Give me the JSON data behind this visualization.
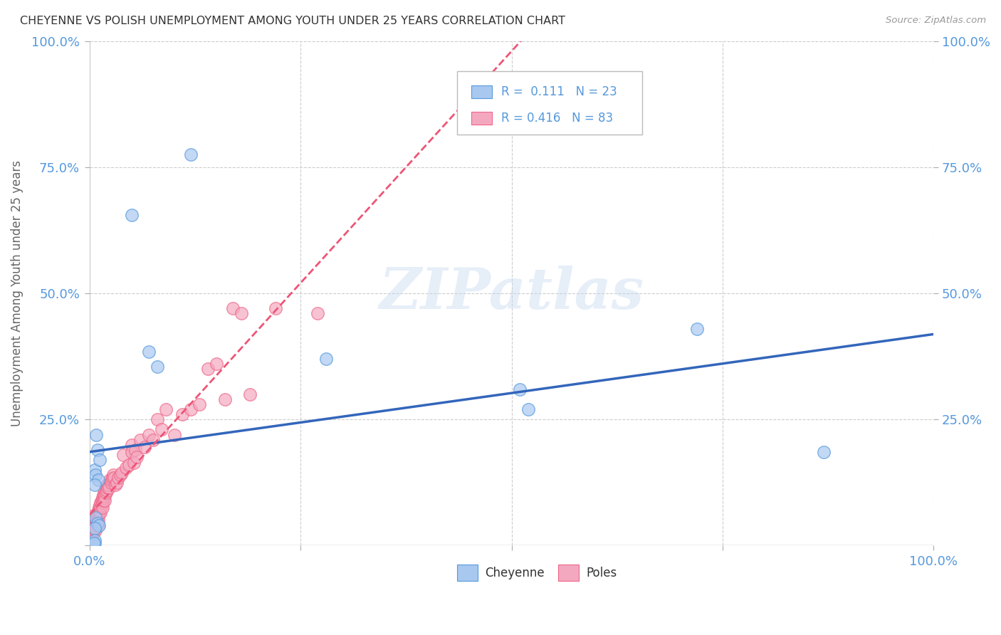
{
  "title": "CHEYENNE VS POLISH UNEMPLOYMENT AMONG YOUTH UNDER 25 YEARS CORRELATION CHART",
  "source": "Source: ZipAtlas.com",
  "ylabel": "Unemployment Among Youth under 25 years",
  "xlim": [
    0,
    1
  ],
  "ylim": [
    0,
    1
  ],
  "cheyenne_R": 0.111,
  "cheyenne_N": 23,
  "poles_R": 0.416,
  "poles_N": 83,
  "cheyenne_color": "#a8c8f0",
  "poles_color": "#f4a8c0",
  "cheyenne_edge_color": "#5599dd",
  "poles_edge_color": "#ee6688",
  "cheyenne_line_color": "#3366bb",
  "poles_line_color": "#ee5577",
  "background_color": "#ffffff",
  "grid_color": "#cccccc",
  "title_color": "#333333",
  "axis_tick_color": "#5599dd",
  "cheyenne_x": [
    0.008,
    0.009,
    0.006,
    0.012,
    0.007,
    0.01,
    0.006,
    0.007,
    0.009,
    0.011,
    0.006,
    0.006,
    0.006,
    0.28,
    0.51,
    0.52,
    0.72,
    0.87,
    0.05,
    0.07,
    0.08,
    0.12,
    0.005
  ],
  "cheyenne_y": [
    0.22,
    0.19,
    0.15,
    0.17,
    0.14,
    0.13,
    0.12,
    0.055,
    0.045,
    0.04,
    0.035,
    0.005,
    0.01,
    0.37,
    0.31,
    0.27,
    0.43,
    0.185,
    0.655,
    0.385,
    0.355,
    0.775,
    0.005
  ],
  "poles_x": [
    0.003,
    0.004,
    0.004,
    0.005,
    0.005,
    0.005,
    0.006,
    0.007,
    0.007,
    0.007,
    0.008,
    0.008,
    0.009,
    0.009,
    0.009,
    0.01,
    0.01,
    0.01,
    0.01,
    0.011,
    0.011,
    0.012,
    0.012,
    0.013,
    0.013,
    0.013,
    0.014,
    0.014,
    0.015,
    0.015,
    0.015,
    0.016,
    0.016,
    0.017,
    0.017,
    0.018,
    0.018,
    0.018,
    0.019,
    0.019,
    0.02,
    0.02,
    0.021,
    0.022,
    0.023,
    0.024,
    0.025,
    0.026,
    0.027,
    0.028,
    0.029,
    0.03,
    0.032,
    0.034,
    0.036,
    0.038,
    0.04,
    0.043,
    0.046,
    0.05,
    0.05,
    0.052,
    0.054,
    0.056,
    0.06,
    0.065,
    0.07,
    0.075,
    0.08,
    0.085,
    0.09,
    0.1,
    0.11,
    0.12,
    0.13,
    0.14,
    0.15,
    0.16,
    0.17,
    0.18,
    0.19,
    0.22,
    0.27
  ],
  "poles_y": [
    0.04,
    0.035,
    0.025,
    0.06,
    0.04,
    0.03,
    0.055,
    0.05,
    0.04,
    0.03,
    0.06,
    0.05,
    0.065,
    0.055,
    0.045,
    0.07,
    0.06,
    0.05,
    0.04,
    0.075,
    0.065,
    0.08,
    0.07,
    0.085,
    0.075,
    0.065,
    0.09,
    0.08,
    0.095,
    0.085,
    0.075,
    0.1,
    0.09,
    0.105,
    0.095,
    0.11,
    0.1,
    0.09,
    0.115,
    0.105,
    0.12,
    0.11,
    0.115,
    0.12,
    0.115,
    0.13,
    0.125,
    0.13,
    0.135,
    0.14,
    0.135,
    0.12,
    0.125,
    0.135,
    0.14,
    0.145,
    0.18,
    0.155,
    0.16,
    0.2,
    0.185,
    0.165,
    0.19,
    0.175,
    0.21,
    0.195,
    0.22,
    0.21,
    0.25,
    0.23,
    0.27,
    0.22,
    0.26,
    0.27,
    0.28,
    0.35,
    0.36,
    0.29,
    0.47,
    0.46,
    0.3,
    0.47,
    0.46
  ],
  "poles_line_x_end": 0.55,
  "cheyenne_line_x_end": 1.0
}
